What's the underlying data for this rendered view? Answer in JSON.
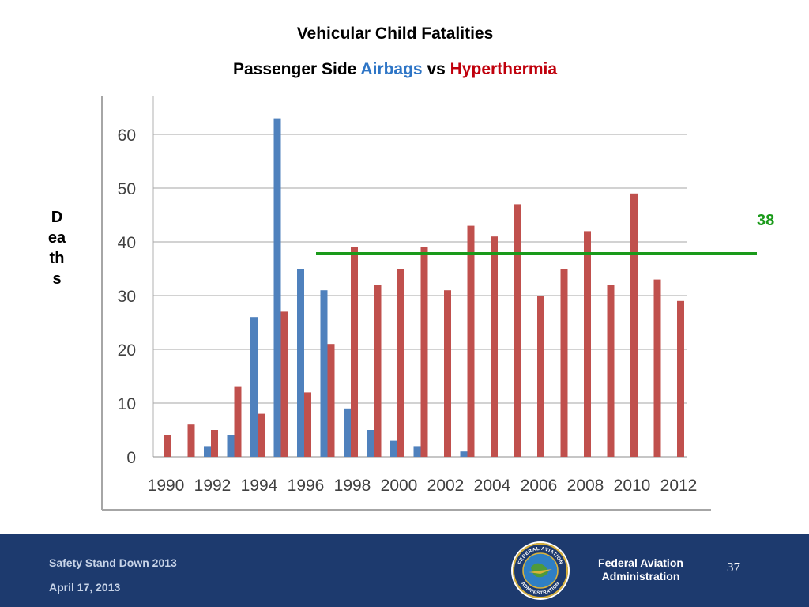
{
  "slide": {
    "title": "Vehicular Child Fatalities",
    "subtitle_prefix": "Passenger Side ",
    "subtitle_airbags": "Airbags",
    "subtitle_vs": " vs ",
    "subtitle_hyperthermia": "Hyperthermia",
    "ylabel": "Deaths",
    "reference_label": "38"
  },
  "colors": {
    "airbags": "#4f81bd",
    "hyperthermia": "#c0504d",
    "reference_line": "#1a9a1a",
    "title_blue": "#2e75c6",
    "title_red": "#c0000c",
    "footer_bg": "#1d3a6e"
  },
  "chart_data": {
    "type": "bar",
    "categories": [
      "1990",
      "1991",
      "1992",
      "1993",
      "1994",
      "1995",
      "1996",
      "1997",
      "1998",
      "1999",
      "2000",
      "2001",
      "2002",
      "2003",
      "2004",
      "2005",
      "2006",
      "2007",
      "2008",
      "2009",
      "2010",
      "2011",
      "2012"
    ],
    "x_tick_labels": [
      "1990",
      "1992",
      "1994",
      "1996",
      "1998",
      "2000",
      "2002",
      "2004",
      "2006",
      "2008",
      "2010",
      "2012"
    ],
    "series": [
      {
        "key": "airbags",
        "values": [
          0,
          0,
          2,
          4,
          26,
          63,
          35,
          31,
          9,
          5,
          3,
          2,
          0,
          1,
          0,
          0,
          0,
          0,
          0,
          0,
          0,
          0,
          0
        ]
      },
      {
        "key": "hyperthermia",
        "values": [
          4,
          6,
          5,
          13,
          8,
          27,
          12,
          21,
          39,
          32,
          35,
          39,
          31,
          43,
          41,
          47,
          30,
          35,
          42,
          32,
          49,
          33,
          29
        ]
      }
    ],
    "reference_line": {
      "value": 38,
      "from_category": "1996",
      "label": "38"
    },
    "ylim": [
      0,
      65
    ],
    "yticks": [
      0,
      10,
      20,
      30,
      40,
      50,
      60
    ],
    "grid": true,
    "title": "Vehicular Child Fatalities",
    "ylabel": "Deaths"
  },
  "footer": {
    "event": "Safety Stand Down 2013",
    "date": "April 17, 2013",
    "agency_line1": "Federal Aviation",
    "agency_line2": "Administration",
    "seal_text_top": "FEDERAL AVIATION",
    "seal_text_bottom": "ADMINISTRATION",
    "page_number": "37"
  }
}
